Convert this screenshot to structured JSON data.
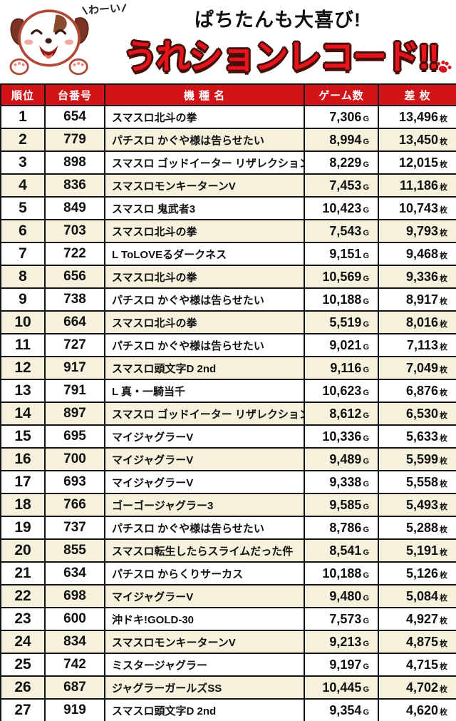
{
  "header": {
    "speech": "わーい",
    "subtitle": "ぱちたんも大喜び!",
    "title": "うれションレコード!!"
  },
  "colors": {
    "title_red": "#e8141c",
    "title_outline": "#47100a",
    "table_header_red": "#d01418",
    "row_alt_cream": "#f6f1dc",
    "border_black": "#141414"
  },
  "table": {
    "columns": [
      "順位",
      "台番号",
      "機 種 名",
      "ゲーム数",
      "差 枚"
    ],
    "game_unit": "G",
    "medal_unit": "枚",
    "rows": [
      {
        "rank": "1",
        "machine_no": "654",
        "model": "スマスロ北斗の拳",
        "games": "7,306",
        "diff": "13,496"
      },
      {
        "rank": "2",
        "machine_no": "779",
        "model": "パチスロ かぐや様は告らせたい",
        "games": "8,994",
        "diff": "13,450"
      },
      {
        "rank": "3",
        "machine_no": "898",
        "model": "スマスロ ゴッドイーター リザレクション",
        "games": "8,229",
        "diff": "12,015"
      },
      {
        "rank": "4",
        "machine_no": "836",
        "model": "スマスロモンキーターンV",
        "games": "7,453",
        "diff": "11,186"
      },
      {
        "rank": "5",
        "machine_no": "849",
        "model": "スマスロ 鬼武者3",
        "games": "10,423",
        "diff": "10,743"
      },
      {
        "rank": "6",
        "machine_no": "703",
        "model": "スマスロ北斗の拳",
        "games": "7,543",
        "diff": "9,793"
      },
      {
        "rank": "7",
        "machine_no": "722",
        "model": "L ToLOVEるダークネス",
        "games": "9,151",
        "diff": "9,468"
      },
      {
        "rank": "8",
        "machine_no": "656",
        "model": "スマスロ北斗の拳",
        "games": "10,569",
        "diff": "9,336"
      },
      {
        "rank": "9",
        "machine_no": "738",
        "model": "パチスロ かぐや様は告らせたい",
        "games": "10,188",
        "diff": "8,917"
      },
      {
        "rank": "10",
        "machine_no": "664",
        "model": "スマスロ北斗の拳",
        "games": "5,519",
        "diff": "8,016"
      },
      {
        "rank": "11",
        "machine_no": "727",
        "model": "パチスロ かぐや様は告らせたい",
        "games": "9,021",
        "diff": "7,113"
      },
      {
        "rank": "12",
        "machine_no": "917",
        "model": "スマスロ頭文字D 2nd",
        "games": "9,116",
        "diff": "7,049"
      },
      {
        "rank": "13",
        "machine_no": "791",
        "model": "L 真・一騎当千",
        "games": "10,623",
        "diff": "6,876"
      },
      {
        "rank": "14",
        "machine_no": "897",
        "model": "スマスロ ゴッドイーター リザレクション",
        "games": "8,612",
        "diff": "6,530"
      },
      {
        "rank": "15",
        "machine_no": "695",
        "model": "マイジャグラーV",
        "games": "10,336",
        "diff": "5,633"
      },
      {
        "rank": "16",
        "machine_no": "700",
        "model": "マイジャグラーV",
        "games": "9,489",
        "diff": "5,599"
      },
      {
        "rank": "17",
        "machine_no": "693",
        "model": "マイジャグラーV",
        "games": "9,338",
        "diff": "5,558"
      },
      {
        "rank": "18",
        "machine_no": "766",
        "model": "ゴーゴージャグラー3",
        "games": "9,585",
        "diff": "5,493"
      },
      {
        "rank": "19",
        "machine_no": "737",
        "model": "パチスロ かぐや様は告らせたい",
        "games": "8,786",
        "diff": "5,288"
      },
      {
        "rank": "20",
        "machine_no": "855",
        "model": "スマスロ転生したらスライムだった件",
        "games": "8,541",
        "diff": "5,191"
      },
      {
        "rank": "21",
        "machine_no": "634",
        "model": "パチスロ からくりサーカス",
        "games": "10,188",
        "diff": "5,126"
      },
      {
        "rank": "22",
        "machine_no": "698",
        "model": "マイジャグラーV",
        "games": "9,480",
        "diff": "5,084"
      },
      {
        "rank": "23",
        "machine_no": "600",
        "model": "沖ドキ!GOLD-30",
        "games": "7,573",
        "diff": "4,927"
      },
      {
        "rank": "24",
        "machine_no": "834",
        "model": "スマスロモンキーターンV",
        "games": "9,213",
        "diff": "4,875"
      },
      {
        "rank": "25",
        "machine_no": "742",
        "model": "ミスタージャグラー",
        "games": "9,197",
        "diff": "4,715"
      },
      {
        "rank": "26",
        "machine_no": "687",
        "model": "ジャグラーガールズSS",
        "games": "10,445",
        "diff": "4,702"
      },
      {
        "rank": "27",
        "machine_no": "919",
        "model": "スマスロ頭文字D 2nd",
        "games": "9,354",
        "diff": "4,620"
      }
    ]
  }
}
